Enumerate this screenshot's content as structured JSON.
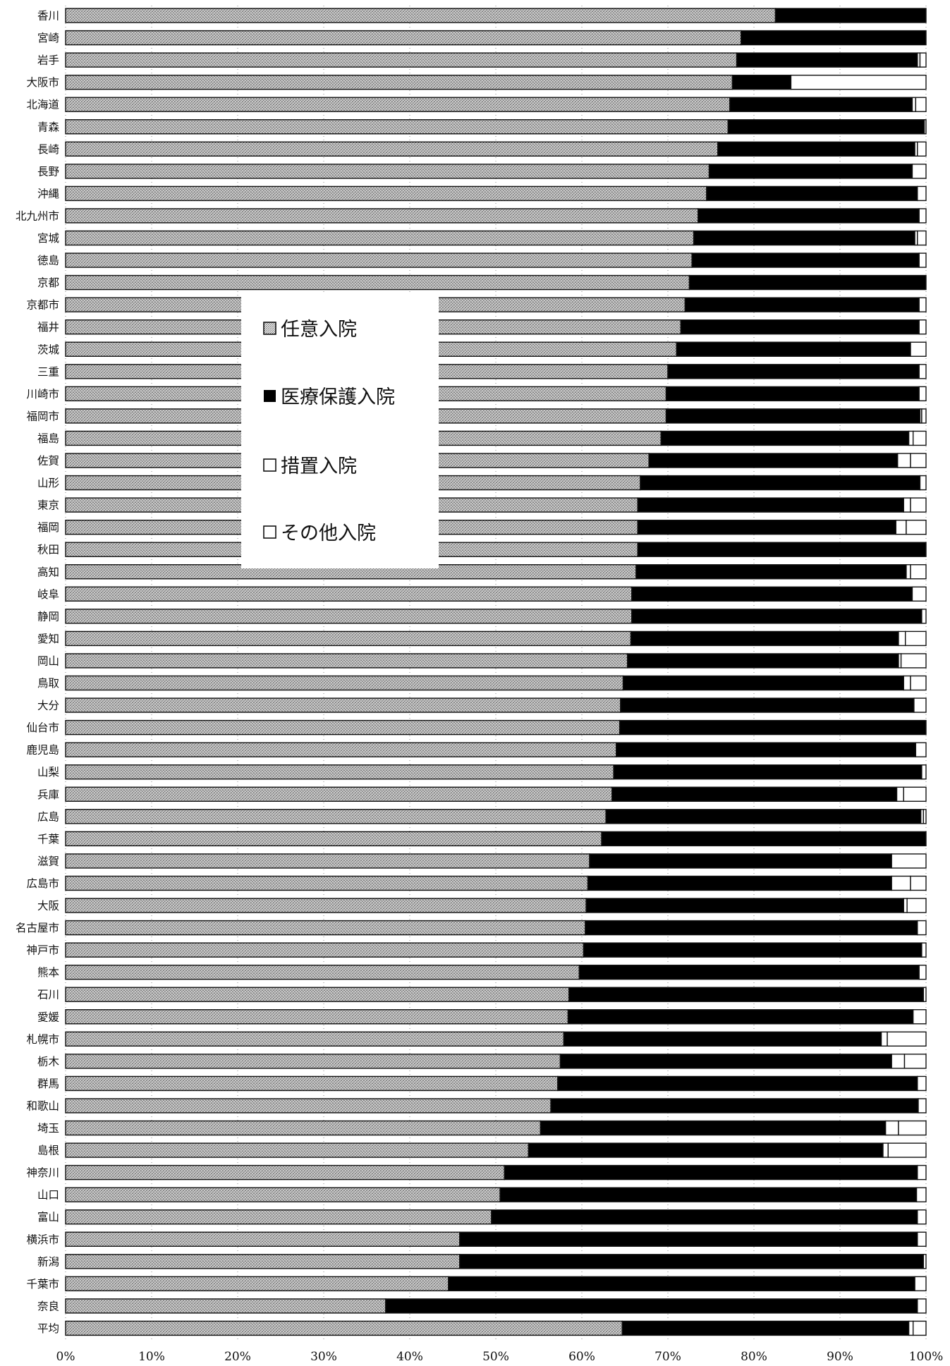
{
  "chart_data": {
    "type": "bar",
    "orientation": "horizontal",
    "stacked": true,
    "normalized_percent": true,
    "categories": [
      "香川",
      "宮崎",
      "岩手",
      "大阪市",
      "北海道",
      "青森",
      "長崎",
      "長野",
      "沖縄",
      "北九州市",
      "宮城",
      "徳島",
      "京都",
      "京都市",
      "福井",
      "茨城",
      "三重",
      "川崎市",
      "福岡市",
      "福島",
      "佐賀",
      "山形",
      "東京",
      "福岡",
      "秋田",
      "高知",
      "岐阜",
      "静岡",
      "愛知",
      "岡山",
      "鳥取",
      "大分",
      "仙台市",
      "鹿児島",
      "山梨",
      "兵庫",
      "広島",
      "千葉",
      "滋賀",
      "広島市",
      "大阪",
      "名古屋市",
      "神戸市",
      "熊本",
      "石川",
      "愛媛",
      "札幌市",
      "栃木",
      "群馬",
      "和歌山",
      "埼玉",
      "島根",
      "神奈川",
      "山口",
      "富山",
      "横浜市",
      "新潟",
      "千葉市",
      "奈良",
      "平均"
    ],
    "series": [
      {
        "name": "任意入院",
        "pattern": "stipple-gray",
        "values": [
          82.5,
          78.5,
          78,
          77.5,
          77.2,
          77,
          75.8,
          74.8,
          74.5,
          73.5,
          73,
          72.8,
          72.5,
          72,
          71.5,
          71,
          70,
          69.8,
          69.8,
          69.2,
          67.8,
          66.8,
          66.5,
          66.5,
          66.5,
          66.3,
          65.8,
          65.8,
          65.7,
          65.3,
          64.8,
          64.5,
          64.4,
          64,
          63.7,
          63.5,
          62.8,
          62.3,
          60.9,
          60.7,
          60.5,
          60.4,
          60.2,
          59.7,
          58.5,
          58.4,
          57.9,
          57.5,
          57.2,
          56.4,
          55.2,
          53.8,
          51,
          50.5,
          49.5,
          45.8,
          45.8,
          44.5,
          37.2,
          64.7
        ]
      },
      {
        "name": "医療保護入院",
        "color": "#000000",
        "values": [
          17.5,
          21.5,
          21,
          6.8,
          21.2,
          22.8,
          22.9,
          23.6,
          24.5,
          25.7,
          25.7,
          26.4,
          27.5,
          27.2,
          27.7,
          27.2,
          29.2,
          29.4,
          29.5,
          28.8,
          28.9,
          32.5,
          30.9,
          30,
          33.5,
          31.4,
          32.6,
          33.7,
          31.1,
          31.5,
          32.6,
          34.1,
          35.6,
          34.8,
          35.8,
          33.1,
          36.6,
          37.7,
          35.1,
          35.3,
          36.9,
          38.6,
          39.3,
          39.5,
          41.2,
          40.1,
          36.9,
          38.5,
          41.8,
          42.7,
          40.1,
          41.2,
          48,
          48.4,
          49.5,
          53.2,
          53.9,
          54.2,
          61.8,
          33.3
        ]
      },
      {
        "name": "措置入院",
        "color": "#ffffff",
        "values": [
          0,
          0,
          0.3,
          0,
          0.4,
          0.2,
          0.3,
          0,
          0,
          0,
          0.3,
          0,
          0,
          0,
          0,
          0,
          0,
          0,
          0.2,
          0.5,
          1.5,
          0,
          0.8,
          1.2,
          0,
          0.5,
          0,
          0,
          0.8,
          0.3,
          0.8,
          0,
          0,
          0,
          0,
          0.8,
          0.3,
          0,
          0,
          2.2,
          0.4,
          0,
          0,
          0,
          0,
          0,
          0.7,
          1.5,
          0,
          0,
          1.5,
          0.6,
          0,
          0,
          0,
          0,
          0,
          0,
          0,
          0.5
        ]
      },
      {
        "name": "その他入院",
        "color": "#ffffff",
        "values": [
          0,
          0,
          0.7,
          15.7,
          1.2,
          0,
          1,
          1.6,
          1,
          0.8,
          1,
          0.8,
          0,
          0.8,
          0.8,
          1.8,
          0.8,
          0.8,
          0.5,
          1.5,
          1.8,
          0.7,
          1.8,
          2.3,
          0,
          1.8,
          1.6,
          0.5,
          2.4,
          2.9,
          1.8,
          1.4,
          0,
          1.2,
          0.5,
          2.6,
          0.3,
          0,
          4,
          1.8,
          2.2,
          1,
          0.5,
          0.8,
          0.3,
          1.5,
          4.5,
          2.5,
          1,
          0.9,
          3.2,
          4.4,
          1,
          1.1,
          1,
          1,
          0.3,
          1.3,
          1,
          1.5
        ]
      }
    ],
    "x_ticks": [
      "0%",
      "10%",
      "20%",
      "30%",
      "40%",
      "50%",
      "60%",
      "70%",
      "80%",
      "90%",
      "100%"
    ],
    "xlim": [
      0,
      100
    ],
    "grid": "dotted-vertical",
    "legend": {
      "placement": "inside-upper-left",
      "entries": [
        {
          "marker": "□",
          "pattern": "stipple-gray",
          "label": "任意入院"
        },
        {
          "marker": "■",
          "color": "#000000",
          "label": "医療保護入院"
        },
        {
          "marker": "□",
          "color": "#ffffff",
          "label": "措置入院"
        },
        {
          "marker": "□",
          "color": "#ffffff",
          "label": "その他入院"
        }
      ]
    }
  }
}
